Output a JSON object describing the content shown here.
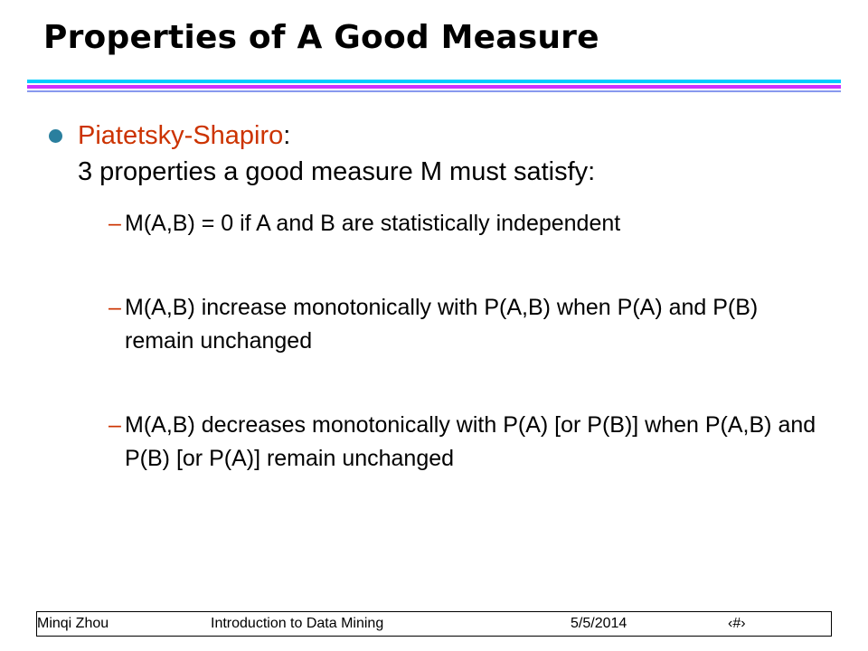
{
  "slide": {
    "title": "Properties of A Good Measure",
    "bullet": {
      "author": "Piatetsky-Shapiro",
      "colon": ":",
      "line2": "3 properties a good measure M must satisfy:"
    },
    "properties": [
      {
        "dash": "–",
        "text": "M(A,B) = 0 if A and B are statistically independent"
      },
      {
        "dash": "–",
        "text": "M(A,B) increase monotonically with P(A,B) when P(A) and P(B) remain unchanged"
      },
      {
        "dash": "–",
        "text": "M(A,B) decreases monotonically with P(A) [or P(B)] when P(A,B) and P(B) [or P(A)] remain unchanged"
      }
    ]
  },
  "footer": {
    "author": "Minqi Zhou",
    "course": "Introduction to Data Mining",
    "date": "5/5/2014",
    "page": "‹#›"
  },
  "colors": {
    "accent_author": "#cc3300",
    "bullet": "#2a7f9e",
    "rule_cyan": "#00ccff",
    "rule_magenta": "#cc33ff"
  }
}
